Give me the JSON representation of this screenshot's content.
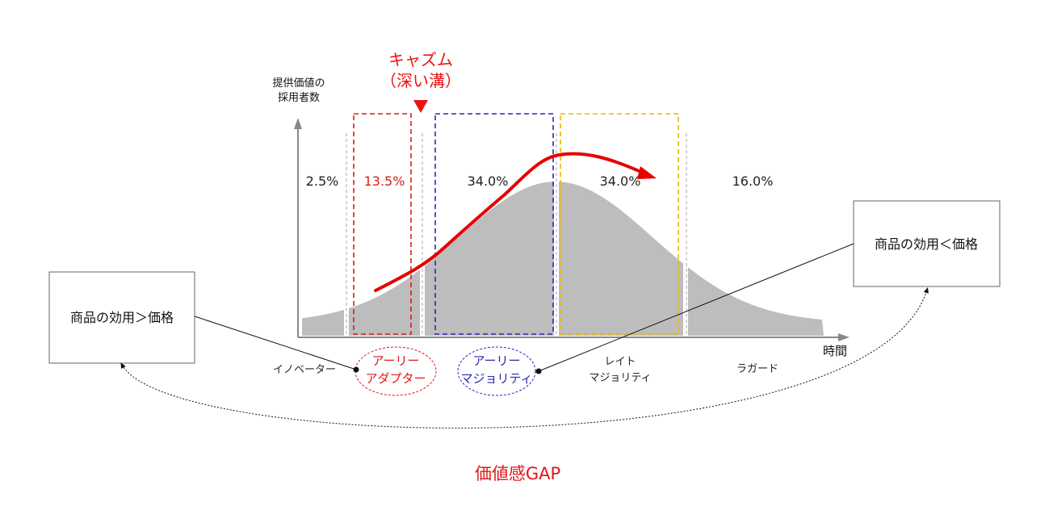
{
  "chasm": {
    "line1": "キャズム",
    "line2": "（深い溝）",
    "color": "#ee1111"
  },
  "axes": {
    "y_label_line1": "提供価値の",
    "y_label_line2": "採用者数",
    "x_label": "時間"
  },
  "segments": [
    {
      "name": "イノベーター",
      "lines": [
        "イノベーター"
      ],
      "percent": "2.5%",
      "percent_color": "#222222",
      "label_color": "#222222"
    },
    {
      "name": "アーリーアダプター",
      "lines": [
        "アーリー",
        "アダプター"
      ],
      "percent": "13.5%",
      "percent_color": "#d42020",
      "label_color": "#e01818"
    },
    {
      "name": "アーリーマジョリティ",
      "lines": [
        "アーリー",
        "マジョリティ"
      ],
      "percent": "34.0%",
      "percent_color": "#222222",
      "label_color": "#2a28a8"
    },
    {
      "name": "レイトマジョリティ",
      "lines": [
        "レイト",
        "マジョリティ"
      ],
      "percent": "34.0%",
      "percent_color": "#222222",
      "label_color": "#222222"
    },
    {
      "name": "ラガード",
      "lines": [
        "ラガード"
      ],
      "percent": "16.0%",
      "percent_color": "#222222",
      "label_color": "#222222"
    }
  ],
  "boxes": {
    "left": "商品の効用＞価格",
    "right": "商品の効用＜価格"
  },
  "gap_label": "価値感GAP",
  "colors": {
    "curve_fill": "#bdbdbd",
    "trend_arrow": "#e60000",
    "early_adopter_border": "#e01818",
    "early_majority_border": "#2a28c0",
    "late_majority_border": "#f0b400",
    "axis": "#888888"
  }
}
